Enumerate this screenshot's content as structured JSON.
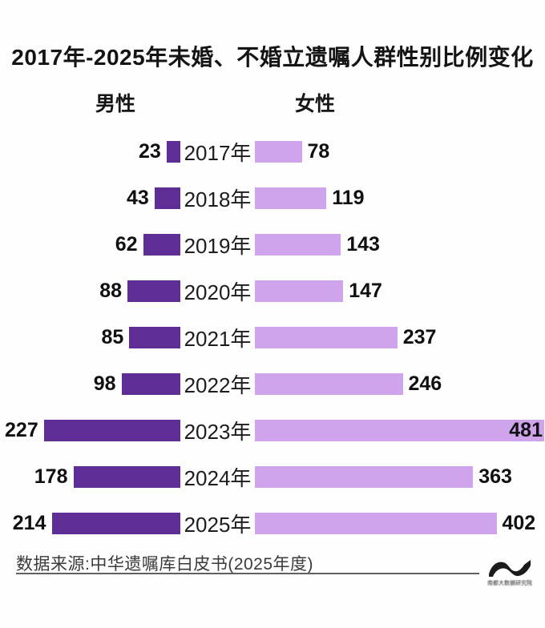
{
  "title": "2017年-2025年未婚、不婚立遗嘱人群性别比例变化",
  "legend": {
    "male": "男性",
    "female": "女性"
  },
  "chart_data": {
    "type": "bar",
    "subtype": "diverging-horizontal",
    "categories": [
      "2017年",
      "2018年",
      "2019年",
      "2020年",
      "2021年",
      "2022年",
      "2023年",
      "2024年",
      "2025年"
    ],
    "series": [
      {
        "name": "男性",
        "side": "left",
        "color": "#5E2E96",
        "values": [
          23,
          43,
          62,
          88,
          85,
          98,
          227,
          178,
          214
        ]
      },
      {
        "name": "女性",
        "side": "right",
        "color": "#CFA4EC",
        "values": [
          78,
          119,
          143,
          147,
          237,
          246,
          481,
          363,
          402
        ]
      }
    ],
    "value_labels": true,
    "xlim": [
      0,
      481
    ],
    "grid": false,
    "legend_position": "top"
  },
  "footer": {
    "source": "数据来源:中华遗嘱库白皮书(2025年度)",
    "watermark": "南都大数据研究院"
  },
  "colors": {
    "male_bar": "#5E2E96",
    "female_bar": "#CFA4EC",
    "text": "#141414",
    "source_text": "#3a3a3a",
    "rule": "#606060",
    "background": "#fefefe"
  }
}
